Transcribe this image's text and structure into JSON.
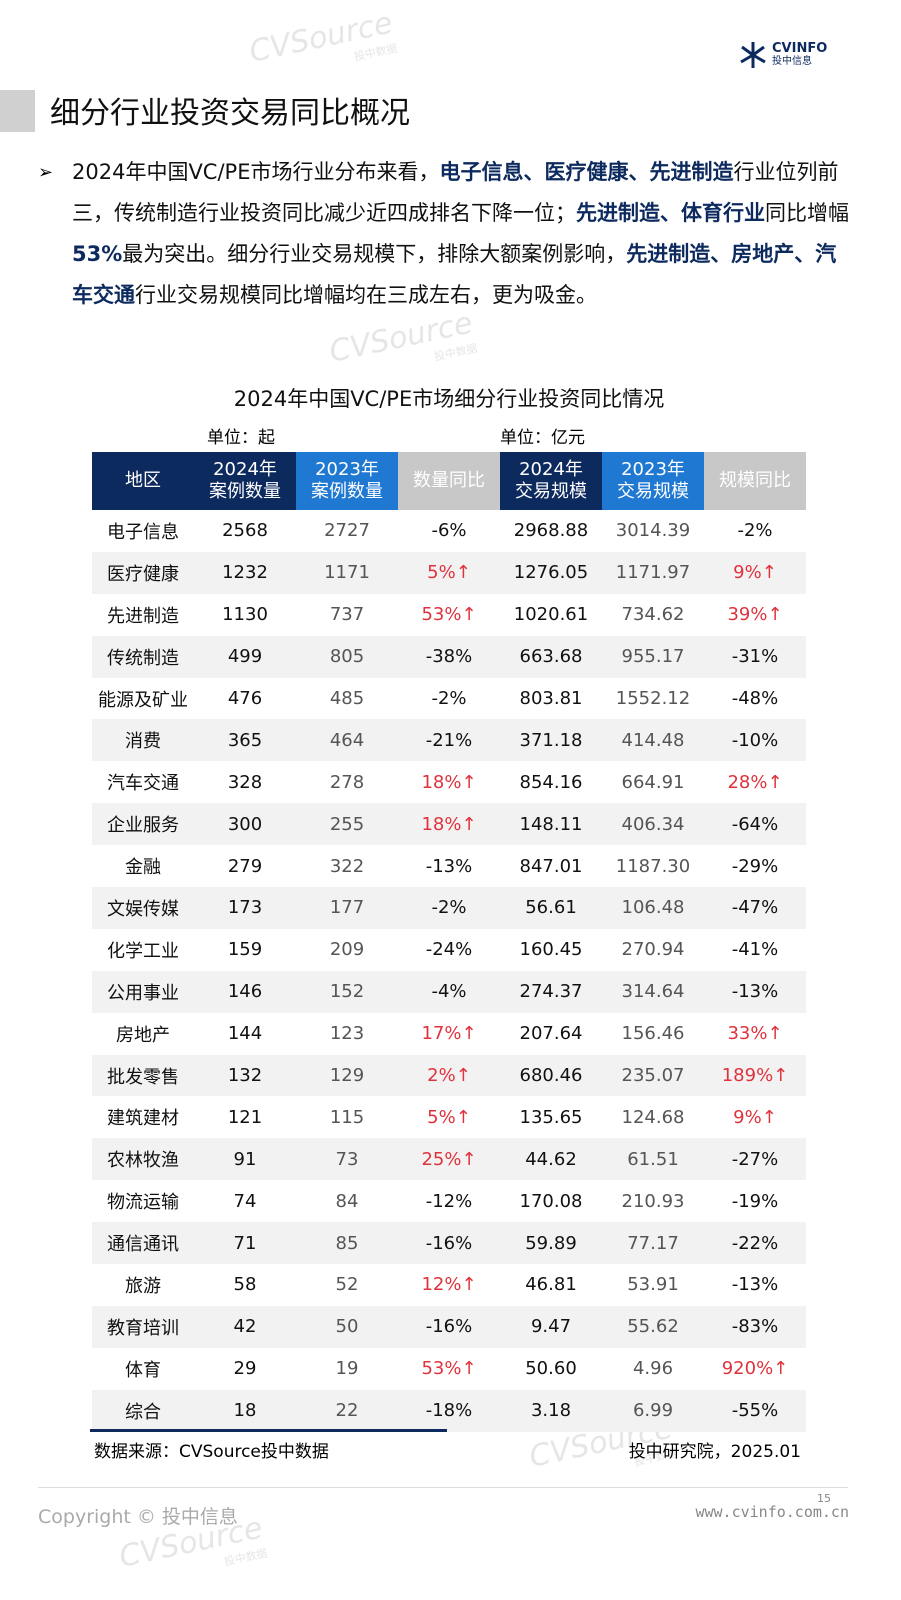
{
  "header": {
    "logo_name": "CVINFO",
    "logo_sub": "投中信息"
  },
  "title": "细分行业投资交易同比概况",
  "bullet": [
    {
      "text": "2024年中国VC/PE市场行业分布来看，",
      "bold": false
    },
    {
      "text": "电子信息、医疗健康、先进制造",
      "bold": true
    },
    {
      "text": "行业位列前三，传统制造行业投资同比减少近四成排名下降一位；",
      "bold": false
    },
    {
      "text": "先进制造、体育行业",
      "bold": true
    },
    {
      "text": "同比增幅",
      "bold": false
    },
    {
      "text": "53%",
      "bold": true
    },
    {
      "text": "最为突出。细分行业交易规模下，排除大额案例影响，",
      "bold": false
    },
    {
      "text": "先进制造、房地产、汽车交通",
      "bold": true
    },
    {
      "text": "行业交易规模同比增幅均在三成左右，更为吸金。",
      "bold": false
    }
  ],
  "table": {
    "title": "2024年中国VC/PE市场细分行业投资同比情况",
    "unit_left": "单位：起",
    "unit_right": "单位：亿元",
    "headers": [
      [
        "地区"
      ],
      [
        "2024年",
        "案例数量"
      ],
      [
        "2023年",
        "案例数量"
      ],
      [
        "数量同比"
      ],
      [
        "2024年",
        "交易规模"
      ],
      [
        "2023年",
        "交易规模"
      ],
      [
        "规模同比"
      ]
    ],
    "rows": [
      [
        "电子信息",
        "2568",
        "2727",
        "-6%",
        "2968.88",
        "3014.39",
        "-2%"
      ],
      [
        "医疗健康",
        "1232",
        "1171",
        "5%↑",
        "1276.05",
        "1171.97",
        "9%↑"
      ],
      [
        "先进制造",
        "1130",
        "737",
        "53%↑",
        "1020.61",
        "734.62",
        "39%↑"
      ],
      [
        "传统制造",
        "499",
        "805",
        "-38%",
        "663.68",
        "955.17",
        "-31%"
      ],
      [
        "能源及矿业",
        "476",
        "485",
        "-2%",
        "803.81",
        "1552.12",
        "-48%"
      ],
      [
        "消费",
        "365",
        "464",
        "-21%",
        "371.18",
        "414.48",
        "-10%"
      ],
      [
        "汽车交通",
        "328",
        "278",
        "18%↑",
        "854.16",
        "664.91",
        "28%↑"
      ],
      [
        "企业服务",
        "300",
        "255",
        "18%↑",
        "148.11",
        "406.34",
        "-64%"
      ],
      [
        "金融",
        "279",
        "322",
        "-13%",
        "847.01",
        "1187.30",
        "-29%"
      ],
      [
        "文娱传媒",
        "173",
        "177",
        "-2%",
        "56.61",
        "106.48",
        "-47%"
      ],
      [
        "化学工业",
        "159",
        "209",
        "-24%",
        "160.45",
        "270.94",
        "-41%"
      ],
      [
        "公用事业",
        "146",
        "152",
        "-4%",
        "274.37",
        "314.64",
        "-13%"
      ],
      [
        "房地产",
        "144",
        "123",
        "17%↑",
        "207.64",
        "156.46",
        "33%↑"
      ],
      [
        "批发零售",
        "132",
        "129",
        "2%↑",
        "680.46",
        "235.07",
        "189%↑"
      ],
      [
        "建筑建材",
        "121",
        "115",
        "5%↑",
        "135.65",
        "124.68",
        "9%↑"
      ],
      [
        "农林牧渔",
        "91",
        "73",
        "25%↑",
        "44.62",
        "61.51",
        "-27%"
      ],
      [
        "物流运输",
        "74",
        "84",
        "-12%",
        "170.08",
        "210.93",
        "-19%"
      ],
      [
        "通信通讯",
        "71",
        "85",
        "-16%",
        "59.89",
        "77.17",
        "-22%"
      ],
      [
        "旅游",
        "58",
        "52",
        "12%↑",
        "46.81",
        "53.91",
        "-13%"
      ],
      [
        "教育培训",
        "42",
        "50",
        "-16%",
        "9.47",
        "55.62",
        "-83%"
      ],
      [
        "体育",
        "29",
        "19",
        "53%↑",
        "50.60",
        "4.96",
        "920%↑"
      ],
      [
        "综合",
        "18",
        "22",
        "-18%",
        "3.18",
        "6.99",
        "-55%"
      ]
    ],
    "source": "数据来源：CVSource投中数据",
    "note": "投中研究院，2025.01"
  },
  "footer": {
    "copyright": "Copyright © 投中信息",
    "url": "www.cvinfo.com.cn",
    "page": "15"
  },
  "watermark": {
    "name": "CVSource",
    "sub": "投中数据"
  }
}
